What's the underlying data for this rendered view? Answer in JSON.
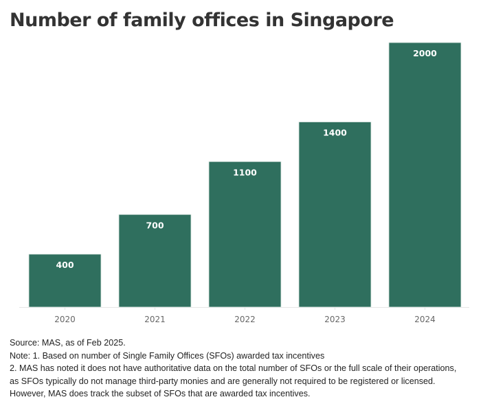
{
  "chart_data": {
    "type": "bar",
    "title": "Number of family offices in Singapore",
    "categories": [
      "2020",
      "2021",
      "2022",
      "2023",
      "2024"
    ],
    "values": [
      400,
      700,
      1100,
      1400,
      2000
    ],
    "data_labels": [
      "400",
      "700",
      "1100",
      "1400",
      "2000"
    ],
    "ylim": [
      0,
      2000
    ],
    "grid": false,
    "bar_color": "#2f6f5e",
    "xlabel": "",
    "ylabel": ""
  },
  "notes": [
    "Source: MAS, as of Feb 2025.",
    "Note: 1. Based on number of Single Family Offices (SFOs) awarded tax incentives",
    "2. MAS has noted it does not have authoritative data on the total number of SFOs or the full scale of their operations,",
    "as SFOs typically do not manage third-party monies and are generally not required to be registered or licensed.",
    "However, MAS does track the subset of SFOs that are awarded tax incentives."
  ]
}
